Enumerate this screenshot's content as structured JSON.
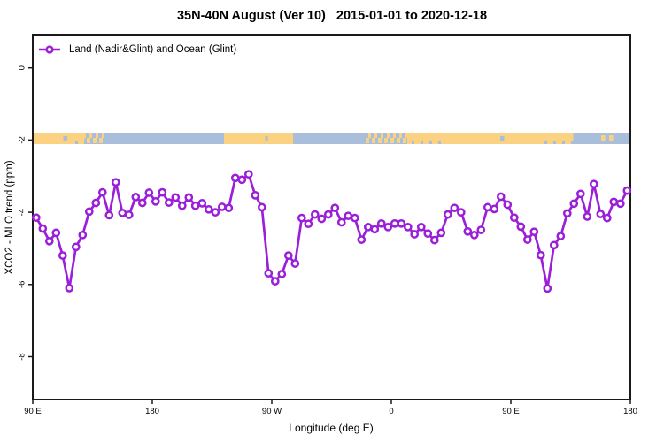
{
  "title": "35N-40N August (Ver 10)   2015-01-01 to 2020-12-18",
  "legend": {
    "label": "Land (Nadir&Glint) and Ocean (Glint)"
  },
  "colors": {
    "line": "#9b1fd9",
    "marker_fill": "#ffffff",
    "land": "#fad282",
    "ocean": "#a9bedb",
    "axis": "#1a1a1a",
    "text": "#000000"
  },
  "chart_data": {
    "type": "line",
    "title": "35N-40N August (Ver 10)   2015-01-01 to 2020-12-18",
    "xlabel": "Longitude (deg E)",
    "ylabel": "XCO2 - MLO trend (ppm)",
    "legend_entries": [
      "Land (Nadir&Glint) and Ocean (Glint)"
    ],
    "legend_position": "top-left-inside",
    "grid": false,
    "x_axis": {
      "tick_labels": [
        "90 E",
        "180",
        "90 W",
        "0",
        "90 E",
        "180"
      ],
      "tick_axis_deg": [
        0,
        90,
        180,
        270,
        360,
        450
      ],
      "axis_span_deg": [
        0,
        450
      ],
      "note_axis_start": "axis begins at 90 E and wraps eastward around the globe to 180"
    },
    "y_axis": {
      "tick_labels": [
        "0",
        "-2",
        "-4",
        "-6",
        "-8"
      ],
      "tick_values": [
        0,
        -2,
        -4,
        -6,
        -8
      ],
      "ylim": [
        -9.2,
        0.9
      ]
    },
    "series": [
      {
        "name": "Land (Nadir&Glint) and Ocean (Glint)",
        "x_start_deg": 2.5,
        "x_step_deg": 5,
        "values": [
          -4.15,
          -4.45,
          -4.8,
          -4.57,
          -5.2,
          -6.1,
          -4.96,
          -4.63,
          -3.98,
          -3.74,
          -3.45,
          -4.08,
          -3.17,
          -4.02,
          -4.07,
          -3.58,
          -3.74,
          -3.46,
          -3.7,
          -3.45,
          -3.73,
          -3.59,
          -3.82,
          -3.59,
          -3.82,
          -3.75,
          -3.92,
          -4.0,
          -3.85,
          -3.88,
          -3.05,
          -3.1,
          -2.95,
          -3.53,
          -3.86,
          -5.69,
          -5.91,
          -5.71,
          -5.2,
          -5.42,
          -4.16,
          -4.32,
          -4.06,
          -4.18,
          -4.06,
          -3.88,
          -4.28,
          -4.1,
          -4.16,
          -4.76,
          -4.41,
          -4.47,
          -4.31,
          -4.41,
          -4.31,
          -4.31,
          -4.41,
          -4.61,
          -4.41,
          -4.59,
          -4.77,
          -4.57,
          -4.06,
          -3.88,
          -4.0,
          -4.53,
          -4.63,
          -4.49,
          -3.86,
          -3.91,
          -3.57,
          -3.79,
          -4.15,
          -4.4,
          -4.76,
          -4.54,
          -5.19,
          -6.11,
          -4.91,
          -4.66,
          -4.03,
          -3.76,
          -3.49,
          -4.12,
          -3.22,
          -4.05,
          -4.16,
          -3.71,
          -3.76,
          -3.4
        ]
      }
    ],
    "land_ocean_strip": {
      "value_center": -2,
      "segments": [
        {
          "x0": 0,
          "x1": 29,
          "kind": "land"
        },
        {
          "x0": 29,
          "x1": 39,
          "kind": "mixL"
        },
        {
          "x0": 39,
          "x1": 54,
          "kind": "mix"
        },
        {
          "x0": 54,
          "x1": 144,
          "kind": "ocean"
        },
        {
          "x0": 144,
          "x1": 196,
          "kind": "land"
        },
        {
          "x0": 196,
          "x1": 250,
          "kind": "ocean"
        },
        {
          "x0": 250,
          "x1": 282,
          "kind": "mix"
        },
        {
          "x0": 282,
          "x1": 309,
          "kind": "mixL"
        },
        {
          "x0": 309,
          "x1": 383,
          "kind": "land"
        },
        {
          "x0": 383,
          "x1": 407,
          "kind": "mixL"
        },
        {
          "x0": 407,
          "x1": 450,
          "kind": "ocean"
        }
      ],
      "land_specks_deg": [
        [
          428,
          431
        ],
        [
          434,
          437
        ]
      ],
      "ocean_specks_deg": [
        [
          23,
          26
        ],
        [
          175,
          177
        ],
        [
          352,
          355
        ]
      ]
    }
  }
}
